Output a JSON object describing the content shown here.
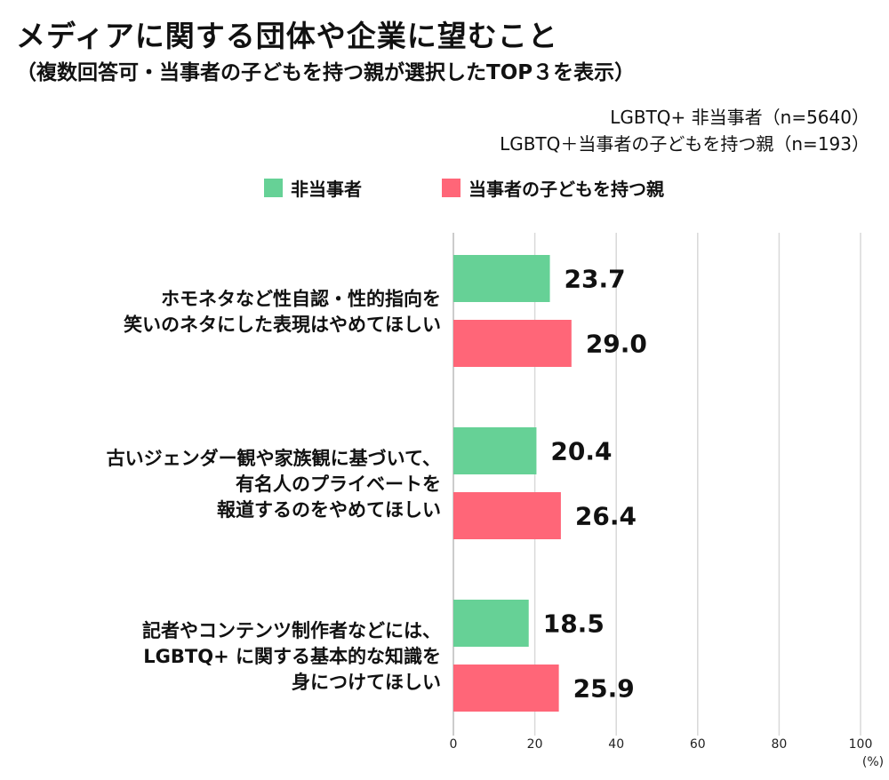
{
  "title": "メディアに関する団体や企業に望むこと",
  "subtitle": "（複数回答可・当事者の子どもを持つ親が選択したTOP３を表示）",
  "notes": [
    "LGBTQ+ 非当事者（n=5640）",
    "LGBTQ＋当事者の子どもを持つ親（n=193）"
  ],
  "chart_data": {
    "type": "bar",
    "orientation": "horizontal",
    "title": "メディアに関する団体や企業に望むこと",
    "categories": [
      [
        "ホモネタなど性自認・性的指向を",
        "笑いのネタにした表現はやめてほしい"
      ],
      [
        "古いジェンダー観や家族観に基づいて、",
        "有名人のプライベートを",
        "報道するのをやめてほしい"
      ],
      [
        "記者やコンテンツ制作者などには、",
        "LGBTQ+ に関する基本的な知識を",
        "身につけてほしい"
      ]
    ],
    "series": [
      {
        "name": "非当事者",
        "color": "#66d196",
        "values": [
          23.7,
          20.4,
          18.5
        ],
        "labels": [
          "23.7",
          "20.4",
          "18.5"
        ]
      },
      {
        "name": "当事者の子どもを持つ親",
        "color": "#ff6678",
        "values": [
          29.0,
          26.4,
          25.9
        ],
        "labels": [
          "29.0",
          "26.4",
          "25.9"
        ]
      }
    ],
    "xlim": [
      0,
      100
    ],
    "xticks": [
      "0",
      "20",
      "40",
      "60",
      "80",
      "100"
    ],
    "xticks_values": [
      0,
      20,
      40,
      60,
      80,
      100
    ],
    "unit": "(%)",
    "grid": true,
    "legend": "top-center"
  }
}
